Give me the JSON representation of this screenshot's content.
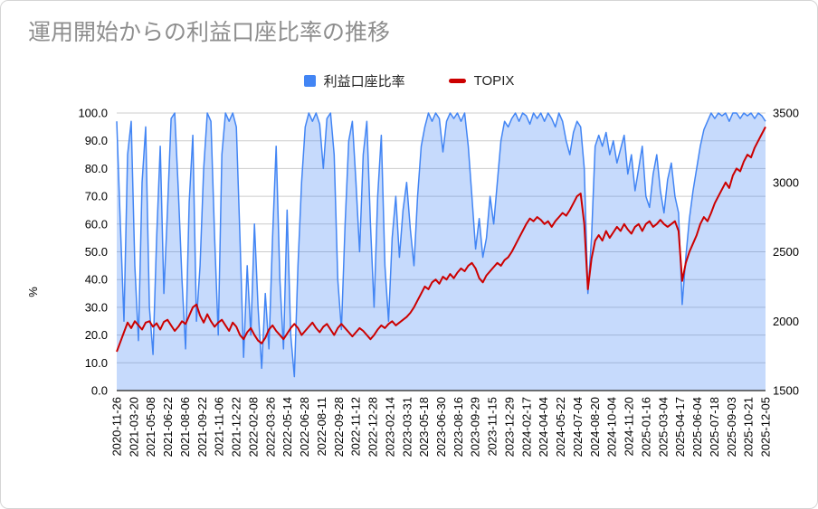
{
  "title": "運用開始からの利益口座比率の推移",
  "chart_data": {
    "type": "area",
    "title": "運用開始からの利益口座比率の推移",
    "grid_color": "#cccccc",
    "axis_line_color": "#424242",
    "title_color": "#8e8e8e",
    "legend_position": "top-center",
    "left_axis": {
      "label": "%",
      "min": 0,
      "max": 100,
      "ticks": [
        "0.0",
        "10.0",
        "20.0",
        "30.0",
        "40.0",
        "50.0",
        "60.0",
        "70.0",
        "80.0",
        "90.0",
        "100.0"
      ]
    },
    "right_axis": {
      "min": 1500,
      "max": 3500,
      "ticks": [
        "1500",
        "2000",
        "2500",
        "3000",
        "3500"
      ]
    },
    "x_labels": [
      "2020-11-26",
      "2021-03-20",
      "2021-05-08",
      "2021-06-22",
      "2021-08-06",
      "2021-09-22",
      "2021-11-06",
      "2021-12-22",
      "2022-02-08",
      "2022-03-26",
      "2022-05-14",
      "2022-06-28",
      "2022-08-11",
      "2022-09-28",
      "2022-11-12",
      "2022-12-28",
      "2023-02-14",
      "2023-03-31",
      "2023-05-18",
      "2023-06-30",
      "2023-08-16",
      "2023-09-29",
      "2023-11-15",
      "2023-12-29",
      "2024-02-17",
      "2024-04-04",
      "2024-05-22",
      "2024-07-04",
      "2024-08-20",
      "2024-10-04",
      "2024-11-20",
      "2025-01-16",
      "2025-03-04",
      "2025-04-17",
      "2025-06-04",
      "2025-07-18",
      "2025-09-03",
      "2025-10-21",
      "2025-12-05"
    ],
    "series": [
      {
        "name": "利益口座比率",
        "type": "area",
        "axis": "left",
        "color": "#4285f4",
        "fill_opacity": 0.3,
        "values": [
          97,
          60,
          25,
          85,
          97,
          45,
          18,
          75,
          95,
          30,
          13,
          55,
          88,
          35,
          65,
          98,
          100,
          72,
          40,
          15,
          68,
          92,
          25,
          45,
          80,
          100,
          97,
          55,
          20,
          85,
          100,
          97,
          100,
          95,
          55,
          12,
          45,
          20,
          60,
          30,
          8,
          35,
          15,
          55,
          88,
          40,
          15,
          65,
          20,
          5,
          45,
          75,
          95,
          100,
          97,
          100,
          96,
          80,
          98,
          100,
          85,
          40,
          22,
          60,
          90,
          97,
          75,
          50,
          85,
          97,
          60,
          30,
          70,
          92,
          45,
          25,
          55,
          70,
          48,
          65,
          75,
          58,
          45,
          70,
          88,
          95,
          100,
          97,
          100,
          98,
          86,
          97,
          100,
          98,
          100,
          97,
          100,
          88,
          70,
          51,
          62,
          48,
          55,
          70,
          60,
          75,
          90,
          97,
          95,
          98,
          100,
          97,
          100,
          99,
          96,
          100,
          98,
          100,
          97,
          100,
          98,
          95,
          100,
          97,
          90,
          85,
          93,
          97,
          95,
          80,
          35,
          55,
          88,
          92,
          88,
          93,
          85,
          90,
          82,
          87,
          92,
          78,
          85,
          72,
          80,
          88,
          70,
          66,
          78,
          85,
          72,
          64,
          76,
          82,
          70,
          64,
          31,
          48,
          62,
          72,
          80,
          88,
          94,
          97,
          100,
          98,
          100,
          99,
          100,
          97,
          100,
          100,
          98,
          100,
          99,
          100,
          98,
          100,
          99,
          97
        ]
      },
      {
        "name": "TOPIX",
        "type": "line",
        "axis": "right",
        "color": "#cc0000",
        "values": [
          1780,
          1850,
          1920,
          1990,
          1950,
          2000,
          1970,
          1940,
          1990,
          2000,
          1960,
          1985,
          1940,
          1995,
          2010,
          1970,
          1930,
          1960,
          2000,
          1980,
          2040,
          2100,
          2120,
          2040,
          1990,
          2050,
          2000,
          1960,
          1990,
          2010,
          1970,
          1930,
          1990,
          1960,
          1900,
          1870,
          1920,
          1950,
          1900,
          1860,
          1840,
          1880,
          1940,
          1970,
          1930,
          1900,
          1870,
          1910,
          1950,
          1980,
          1950,
          1900,
          1930,
          1960,
          1990,
          1950,
          1920,
          1960,
          1980,
          1940,
          1900,
          1950,
          1980,
          1950,
          1920,
          1890,
          1920,
          1950,
          1930,
          1900,
          1870,
          1900,
          1940,
          1970,
          1950,
          1980,
          2000,
          1970,
          1990,
          2010,
          2030,
          2060,
          2100,
          2150,
          2200,
          2250,
          2230,
          2280,
          2300,
          2270,
          2320,
          2300,
          2340,
          2310,
          2350,
          2380,
          2360,
          2400,
          2420,
          2380,
          2310,
          2280,
          2330,
          2360,
          2390,
          2420,
          2400,
          2440,
          2460,
          2500,
          2550,
          2600,
          2650,
          2700,
          2740,
          2720,
          2750,
          2730,
          2700,
          2720,
          2680,
          2720,
          2750,
          2780,
          2760,
          2800,
          2850,
          2900,
          2920,
          2700,
          2230,
          2450,
          2580,
          2620,
          2580,
          2650,
          2600,
          2640,
          2680,
          2650,
          2700,
          2660,
          2630,
          2680,
          2700,
          2650,
          2700,
          2720,
          2680,
          2700,
          2730,
          2700,
          2680,
          2700,
          2720,
          2650,
          2290,
          2420,
          2500,
          2560,
          2620,
          2700,
          2750,
          2720,
          2780,
          2850,
          2900,
          2950,
          3000,
          2960,
          3050,
          3100,
          3080,
          3150,
          3200,
          3180,
          3250,
          3300,
          3350,
          3400
        ]
      }
    ]
  }
}
